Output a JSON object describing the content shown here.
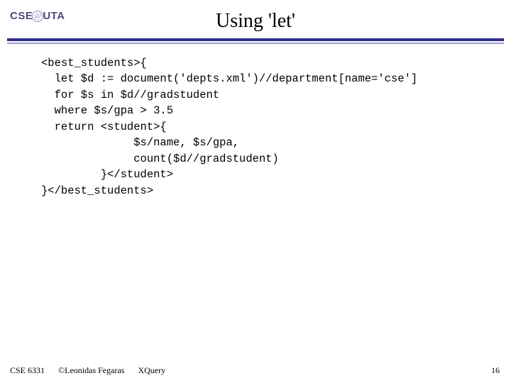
{
  "header": {
    "logo_left": "CSE",
    "logo_right": "UTA",
    "title": "Using 'let'"
  },
  "code": {
    "l1": "<best_students>{",
    "l2": "  let $d := document('depts.xml')//department[name='cse']",
    "l3": "  for $s in $d//gradstudent",
    "l4": "  where $s/gpa > 3.5",
    "l5": "  return <student>{",
    "l6": "              $s/name, $s/gpa,",
    "l7": "              count($d//gradstudent)",
    "l8": "         }</student>",
    "l9": "}</best_students>"
  },
  "footer": {
    "course": "CSE 6331",
    "copyright": "©Leonidas Fegaras",
    "topic": "XQuery",
    "page": "16"
  },
  "colors": {
    "rule_dark": "#2c2c8a",
    "rule_light": "#9a9acc",
    "logo_text": "#4a4a7a",
    "background": "#ffffff"
  }
}
